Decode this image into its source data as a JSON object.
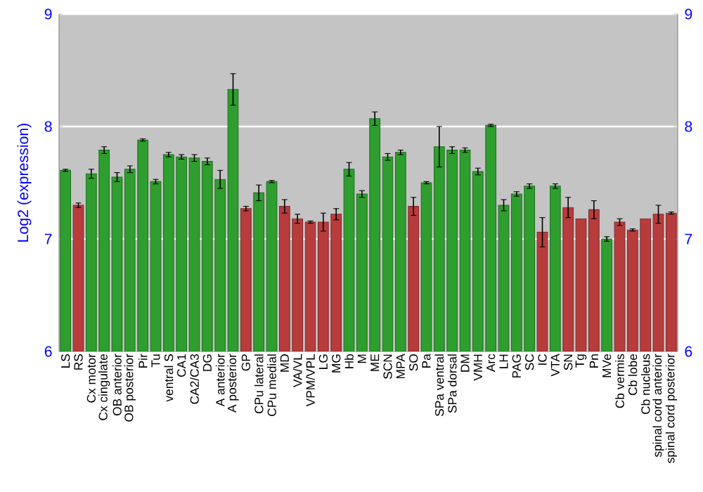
{
  "chart_data": {
    "type": "bar",
    "ylabel": "Log2 (expression)",
    "categories": [
      "LS",
      "RS",
      "Cx motor",
      "Cx cingulate",
      "OB anterior",
      "OB posterior",
      "Pir",
      "Tu",
      "ventral S",
      "CA1",
      "CA2/CA3",
      "DG",
      "A anterior",
      "A posterior",
      "GP",
      "CPu lateral",
      "CPu medial",
      "MD",
      "VA/VL",
      "VPM/VPL",
      "LG",
      "MG",
      "Hb",
      "M",
      "ME",
      "SCN",
      "MPA",
      "SO",
      "Pa",
      "SPa ventral",
      "SPa dorsal",
      "DM",
      "VMH",
      "Arc",
      "LH",
      "PAG",
      "SC",
      "IC",
      "VTA",
      "SN",
      "Tg",
      "Pn",
      "MVe",
      "Cb vermis",
      "Cb lobe",
      "Cb nucleus",
      "spinal cord anterior",
      "spinal cord posterior"
    ],
    "values": [
      7.61,
      7.3,
      7.58,
      7.79,
      7.55,
      7.62,
      7.88,
      7.51,
      7.75,
      7.73,
      7.72,
      7.69,
      7.53,
      8.33,
      7.27,
      7.41,
      7.51,
      7.29,
      7.18,
      7.15,
      7.15,
      7.22,
      7.62,
      7.4,
      8.07,
      7.73,
      7.77,
      7.29,
      7.5,
      7.82,
      7.79,
      7.79,
      7.6,
      8.01,
      7.3,
      7.4,
      7.47,
      7.06,
      7.47,
      7.28,
      7.18,
      7.26,
      7.0,
      7.15,
      7.08,
      7.18,
      7.22,
      7.23
    ],
    "errors": [
      0.01,
      0.02,
      0.04,
      0.03,
      0.04,
      0.03,
      0.01,
      0.02,
      0.02,
      0.02,
      0.03,
      0.03,
      0.08,
      0.14,
      0.02,
      0.07,
      0.01,
      0.06,
      0.04,
      0.01,
      0.08,
      0.05,
      0.06,
      0.03,
      0.06,
      0.03,
      0.02,
      0.08,
      0.01,
      0.18,
      0.03,
      0.02,
      0.03,
      0.01,
      0.05,
      0.02,
      0.02,
      0.13,
      0.02,
      0.09,
      null,
      0.08,
      0.02,
      0.03,
      0.01,
      null,
      0.08,
      0.01
    ],
    "colors": [
      "#2e9e2e",
      "#b83c3c",
      "#2e9e2e",
      "#2e9e2e",
      "#2e9e2e",
      "#2e9e2e",
      "#2e9e2e",
      "#2e9e2e",
      "#2e9e2e",
      "#2e9e2e",
      "#2e9e2e",
      "#2e9e2e",
      "#2e9e2e",
      "#2e9e2e",
      "#b83c3c",
      "#2e9e2e",
      "#2e9e2e",
      "#b83c3c",
      "#b83c3c",
      "#b83c3c",
      "#b83c3c",
      "#b83c3c",
      "#2e9e2e",
      "#2e9e2e",
      "#2e9e2e",
      "#2e9e2e",
      "#2e9e2e",
      "#b83c3c",
      "#2e9e2e",
      "#2e9e2e",
      "#2e9e2e",
      "#2e9e2e",
      "#2e9e2e",
      "#2e9e2e",
      "#2e9e2e",
      "#2e9e2e",
      "#2e9e2e",
      "#b83c3c",
      "#2e9e2e",
      "#b83c3c",
      "#b83c3c",
      "#b83c3c",
      "#2e9e2e",
      "#b83c3c",
      "#b83c3c",
      "#b83c3c",
      "#b83c3c",
      "#b83c3c"
    ],
    "ylim": [
      6,
      9
    ],
    "yticks": [
      6,
      7,
      8,
      9
    ],
    "y2lim": [
      6,
      9
    ],
    "y2ticks": [
      6,
      7,
      8,
      9
    ],
    "grid": "y"
  }
}
